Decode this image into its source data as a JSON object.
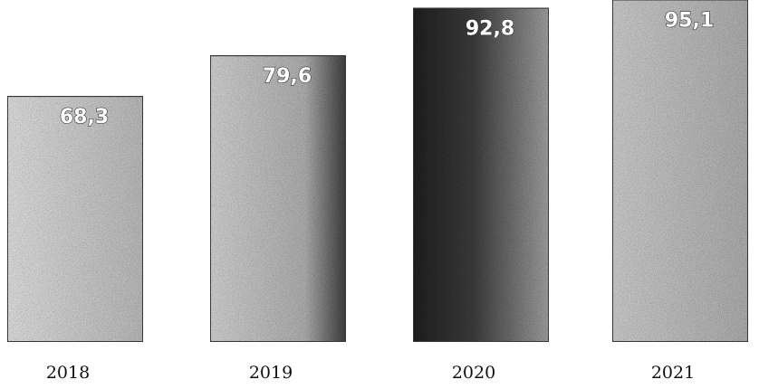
{
  "chart_data": {
    "type": "bar",
    "categories": [
      "2018",
      "2019",
      "2020",
      "2021"
    ],
    "values": [
      68.3,
      79.6,
      92.8,
      95.1
    ],
    "value_labels": [
      "68,3",
      "79,6",
      "92,8",
      "95,1"
    ],
    "title": "",
    "xlabel": "",
    "ylabel": "",
    "ylim": [
      0,
      100
    ],
    "grid": false,
    "legend": "none",
    "colors": {
      "bar_light": "#bdbdbd",
      "bar_mid": "#8a8a8a",
      "bar_dark": "#2b2b2b"
    }
  }
}
